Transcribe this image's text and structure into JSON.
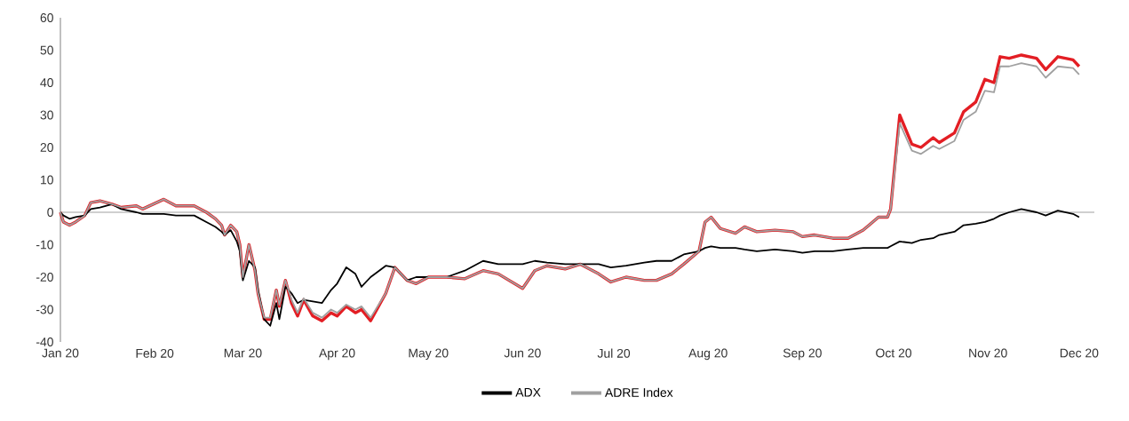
{
  "chart_data": {
    "type": "line",
    "x": [
      "2020-01-01",
      "2020-01-02",
      "2020-01-04",
      "2020-01-06",
      "2020-01-09",
      "2020-01-11",
      "2020-01-14",
      "2020-01-18",
      "2020-01-21",
      "2020-01-26",
      "2020-01-28",
      "2020-02-04",
      "2020-02-08",
      "2020-02-14",
      "2020-02-18",
      "2020-02-21",
      "2020-02-23",
      "2020-02-24",
      "2020-02-26",
      "2020-02-28",
      "2020-02-29",
      "2020-03-01",
      "2020-03-03",
      "2020-03-05",
      "2020-03-06",
      "2020-03-08",
      "2020-03-10",
      "2020-03-12",
      "2020-03-13",
      "2020-03-15",
      "2020-03-17",
      "2020-03-19",
      "2020-03-21",
      "2020-03-24",
      "2020-03-27",
      "2020-03-30",
      "2020-04-01",
      "2020-04-04",
      "2020-04-07",
      "2020-04-09",
      "2020-04-12",
      "2020-04-17",
      "2020-04-20",
      "2020-04-24",
      "2020-04-27",
      "2020-05-01",
      "2020-05-07",
      "2020-05-13",
      "2020-05-19",
      "2020-05-24",
      "2020-06-01",
      "2020-06-05",
      "2020-06-09",
      "2020-06-15",
      "2020-06-20",
      "2020-06-26",
      "2020-06-30",
      "2020-07-05",
      "2020-07-11",
      "2020-07-15",
      "2020-07-20",
      "2020-07-24",
      "2020-07-29",
      "2020-07-31",
      "2020-08-02",
      "2020-08-05",
      "2020-08-10",
      "2020-08-13",
      "2020-08-17",
      "2020-08-23",
      "2020-08-29",
      "2020-09-01",
      "2020-09-05",
      "2020-09-11",
      "2020-09-16",
      "2020-09-21",
      "2020-09-26",
      "2020-09-29",
      "2020-09-30",
      "2020-10-03",
      "2020-10-07",
      "2020-10-10",
      "2020-10-14",
      "2020-10-16",
      "2020-10-21",
      "2020-10-24",
      "2020-10-28",
      "2020-10-31",
      "2020-11-03",
      "2020-11-05",
      "2020-11-08",
      "2020-11-12",
      "2020-11-17",
      "2020-11-20",
      "2020-11-24",
      "2020-11-29",
      "2020-12-01"
    ],
    "series": [
      {
        "color": "#e31e24",
        "values": [
          0,
          -3,
          -4,
          -3,
          -1,
          3,
          3.5,
          2.5,
          1.5,
          2,
          1,
          4,
          2,
          2,
          0,
          -2,
          -4,
          -7,
          -4,
          -6,
          -10,
          -20,
          -10,
          -18,
          -25,
          -33,
          -33,
          -24,
          -29,
          -21,
          -28,
          -32,
          -27,
          -32,
          -33.5,
          -31,
          -32,
          -29,
          -31,
          -30,
          -33.5,
          -25,
          -17,
          -21,
          -22,
          -20,
          -20,
          -20.5,
          -18,
          -19,
          -23.5,
          -18,
          -16.5,
          -17.5,
          -16,
          -19,
          -21.5,
          -20,
          -21,
          -21,
          -19,
          -16,
          -12,
          -3,
          -1.5,
          -5,
          -6.5,
          -4.5,
          -6,
          -5.5,
          -6,
          -7.5,
          -7,
          -8,
          -8,
          -5.5,
          -1.5,
          -1.5,
          1,
          30,
          21,
          20,
          23,
          21.5,
          24.5,
          31,
          34,
          41,
          40,
          48,
          47.5,
          48.5,
          47.5,
          44,
          48,
          47,
          45
        ]
      },
      {
        "name": "ADX",
        "color": "#000000",
        "values": [
          0,
          -1,
          -2,
          -1.5,
          -1,
          1,
          1.5,
          2.5,
          1,
          0,
          -0.5,
          -0.5,
          -1,
          -1,
          -3,
          -4.5,
          -6,
          -7,
          -5.5,
          -9,
          -12,
          -21,
          -15,
          -17,
          -24,
          -33,
          -35,
          -28,
          -33,
          -23,
          -25,
          -28,
          -27,
          -27.5,
          -28,
          -24,
          -22,
          -17,
          -19,
          -23,
          -20,
          -16.5,
          -17,
          -21,
          -20,
          -20,
          -20,
          -18,
          -15,
          -16,
          -16,
          -15,
          -15.5,
          -16,
          -16,
          -16,
          -17,
          -16.5,
          -15.5,
          -15,
          -15,
          -13,
          -12,
          -11,
          -10.5,
          -11,
          -11,
          -11.5,
          -12,
          -11.5,
          -12,
          -12.5,
          -12,
          -12,
          -11.5,
          -11,
          -11,
          -11,
          -10.5,
          -9,
          -9.5,
          -8.5,
          -8,
          -7,
          -6,
          -4,
          -3.5,
          -3,
          -2,
          -1,
          0,
          1,
          0,
          -1,
          0.5,
          -0.5,
          -1.5
        ]
      },
      {
        "name": "ADRE Index",
        "color": "#a0a0a0",
        "values": [
          0,
          -3,
          -4,
          -3,
          -1,
          3,
          3.5,
          2.5,
          1.5,
          2,
          1,
          4,
          2,
          2,
          0,
          -2,
          -4,
          -7,
          -4,
          -6,
          -10,
          -20,
          -10,
          -18,
          -25,
          -32.5,
          -32.5,
          -24,
          -28.5,
          -21,
          -27,
          -31,
          -26.5,
          -31,
          -32.5,
          -30,
          -31,
          -28.5,
          -30,
          -29,
          -32.5,
          -25,
          -17,
          -21,
          -22,
          -20,
          -20,
          -20.5,
          -18,
          -19,
          -23.5,
          -18,
          -16.5,
          -17.5,
          -16,
          -19,
          -21.5,
          -20,
          -21,
          -21,
          -19,
          -16,
          -12,
          -3,
          -1.5,
          -5,
          -6.5,
          -4.5,
          -6,
          -5.5,
          -6,
          -7.5,
          -7,
          -8,
          -8,
          -5.5,
          -1.5,
          -1.5,
          1,
          27.5,
          19,
          18,
          20.5,
          19.5,
          22,
          28.5,
          31,
          37.5,
          37,
          45,
          45,
          46,
          45,
          41.5,
          45,
          44.5,
          42.5
        ]
      }
    ],
    "xlim": [
      "2020-01-01",
      "2020-12-06"
    ],
    "xticks": [
      {
        "value": "2020-01-01",
        "label": "Jan 20"
      },
      {
        "value": "2020-02-01",
        "label": "Feb 20"
      },
      {
        "value": "2020-03-01",
        "label": "Mar 20"
      },
      {
        "value": "2020-04-01",
        "label": "Apr 20"
      },
      {
        "value": "2020-05-01",
        "label": "May 20"
      },
      {
        "value": "2020-06-01",
        "label": "Jun 20"
      },
      {
        "value": "2020-07-01",
        "label": "Jul 20"
      },
      {
        "value": "2020-08-01",
        "label": "Aug 20"
      },
      {
        "value": "2020-09-01",
        "label": "Sep 20"
      },
      {
        "value": "2020-10-01",
        "label": "Oct 20"
      },
      {
        "value": "2020-11-01",
        "label": "Nov 20"
      },
      {
        "value": "2020-12-01",
        "label": "Dec 20"
      }
    ],
    "ylim": [
      -40,
      60
    ],
    "yticks": [
      -40,
      -30,
      -20,
      -10,
      0,
      10,
      20,
      30,
      40,
      50,
      60
    ],
    "ref_lines": [
      {
        "axis": "y",
        "value": 0,
        "color": "#a0a0a0"
      }
    ],
    "grid": false,
    "legend": "bottom",
    "marker": "none",
    "line_style": "solid"
  }
}
